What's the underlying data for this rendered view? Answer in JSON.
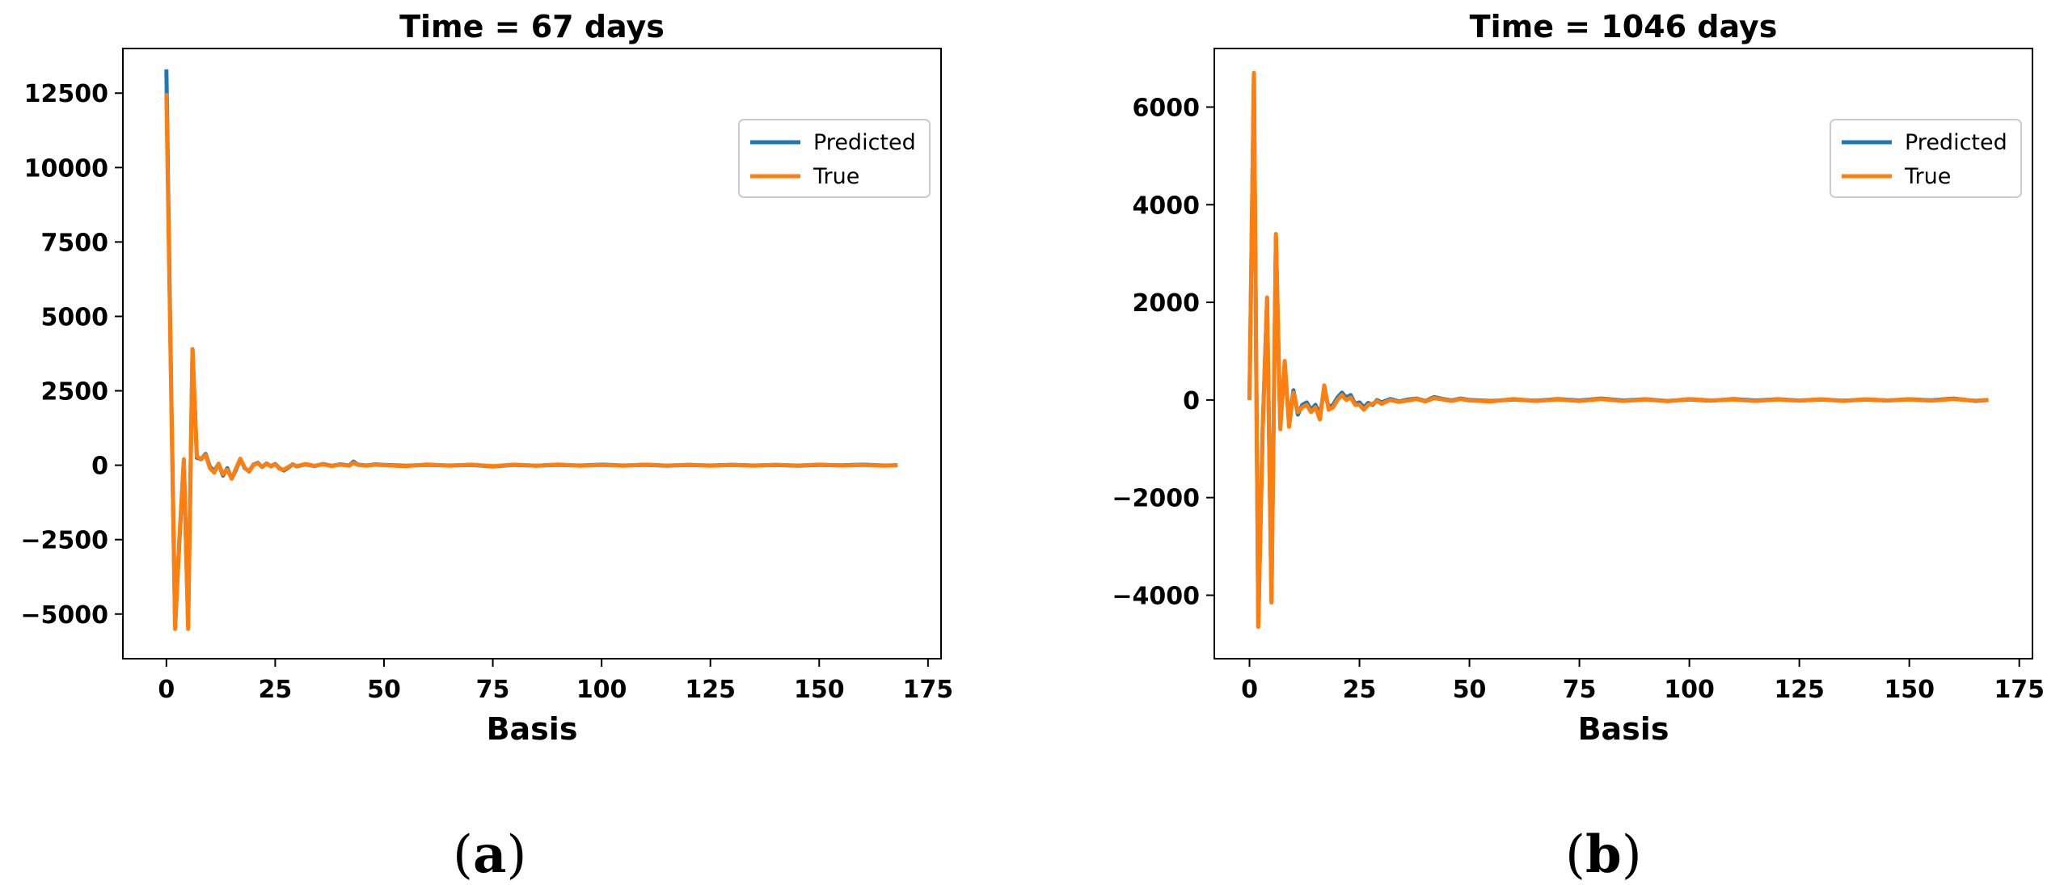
{
  "chart_data": [
    {
      "type": "line",
      "title": "Time = 67 days",
      "xlabel": "Basis",
      "ylabel": "",
      "xlim": [
        -10,
        178
      ],
      "ylim": [
        -6500,
        14000
      ],
      "xticks": [
        0,
        25,
        50,
        75,
        100,
        125,
        150,
        175
      ],
      "xtick_labels": [
        "0",
        "25",
        "50",
        "75",
        "100",
        "125",
        "150",
        "175"
      ],
      "yticks": [
        -5000,
        -2500,
        0,
        2500,
        5000,
        7500,
        10000,
        12500
      ],
      "ytick_labels": [
        "−5000",
        "−2500",
        "0",
        "2500",
        "5000",
        "7500",
        "10000",
        "12500"
      ],
      "legend_position": "upper right",
      "caption": "a",
      "series": [
        {
          "name": "Predicted",
          "color": "#1f77b4",
          "x": [
            0,
            1,
            2,
            3,
            4,
            5,
            6,
            7,
            8,
            9,
            10,
            11,
            12,
            13,
            14,
            15,
            16,
            17,
            18,
            19,
            20,
            21,
            22,
            23,
            24,
            25,
            26,
            27,
            28,
            29,
            30,
            32,
            34,
            36,
            38,
            40,
            42,
            43,
            44,
            46,
            48,
            50,
            55,
            60,
            65,
            70,
            75,
            80,
            85,
            90,
            95,
            100,
            105,
            110,
            115,
            120,
            125,
            130,
            135,
            140,
            145,
            150,
            155,
            160,
            165,
            168
          ],
          "y": [
            13300,
            3500,
            -5400,
            -2500,
            150,
            -5400,
            3900,
            250,
            200,
            380,
            -50,
            -200,
            50,
            -350,
            -100,
            -450,
            -150,
            200,
            -100,
            -200,
            20,
            80,
            -60,
            60,
            -30,
            40,
            -100,
            -180,
            -80,
            30,
            -40,
            30,
            -30,
            40,
            -20,
            30,
            -10,
            120,
            20,
            -10,
            30,
            10,
            -20,
            15,
            -10,
            10,
            -40,
            10,
            -20,
            15,
            -10,
            20,
            -10,
            15,
            -15,
            10,
            -10,
            15,
            -10,
            10,
            -15,
            10,
            -5,
            20,
            -10,
            0
          ]
        },
        {
          "name": "True",
          "color": "#ff7f0e",
          "x": [
            0,
            1,
            2,
            3,
            4,
            5,
            6,
            7,
            8,
            9,
            10,
            11,
            12,
            13,
            14,
            15,
            16,
            17,
            18,
            19,
            20,
            21,
            22,
            23,
            24,
            25,
            26,
            27,
            28,
            29,
            30,
            32,
            34,
            36,
            38,
            40,
            42,
            43,
            44,
            46,
            48,
            50,
            55,
            60,
            65,
            70,
            75,
            80,
            85,
            90,
            95,
            100,
            105,
            110,
            115,
            120,
            125,
            130,
            135,
            140,
            145,
            150,
            155,
            160,
            165,
            168
          ],
          "y": [
            12500,
            3300,
            -5500,
            -2400,
            200,
            -5500,
            3900,
            300,
            200,
            350,
            -100,
            -250,
            50,
            -300,
            -150,
            -450,
            -100,
            220,
            -80,
            -220,
            10,
            60,
            -50,
            50,
            -40,
            30,
            -120,
            -150,
            -60,
            20,
            -30,
            40,
            -20,
            30,
            -30,
            20,
            -20,
            80,
            10,
            -20,
            20,
            0,
            -30,
            25,
            -15,
            20,
            -30,
            20,
            -15,
            25,
            -20,
            10,
            -15,
            20,
            -10,
            15,
            -20,
            10,
            -15,
            15,
            -10,
            20,
            -10,
            10,
            -20,
            0
          ]
        }
      ]
    },
    {
      "type": "line",
      "title": "Time = 1046 days",
      "xlabel": "Basis",
      "ylabel": "",
      "xlim": [
        -8,
        178
      ],
      "ylim": [
        -5300,
        7200
      ],
      "xticks": [
        0,
        25,
        50,
        75,
        100,
        125,
        150,
        175
      ],
      "xtick_labels": [
        "0",
        "25",
        "50",
        "75",
        "100",
        "125",
        "150",
        "175"
      ],
      "yticks": [
        -4000,
        -2000,
        0,
        2000,
        4000,
        6000
      ],
      "ytick_labels": [
        "−4000",
        "−2000",
        "0",
        "2000",
        "4000",
        "6000"
      ],
      "legend_position": "upper right",
      "caption": "b",
      "series": [
        {
          "name": "Predicted",
          "color": "#1f77b4",
          "x": [
            0,
            1,
            2,
            3,
            4,
            5,
            6,
            7,
            8,
            9,
            10,
            11,
            12,
            13,
            14,
            15,
            16,
            17,
            18,
            19,
            20,
            21,
            22,
            23,
            24,
            25,
            26,
            27,
            28,
            29,
            30,
            32,
            34,
            36,
            38,
            40,
            42,
            44,
            46,
            48,
            50,
            55,
            60,
            65,
            70,
            75,
            80,
            85,
            90,
            95,
            100,
            105,
            110,
            115,
            120,
            125,
            130,
            135,
            140,
            145,
            150,
            155,
            160,
            165,
            168
          ],
          "y": [
            0,
            6650,
            -4600,
            -600,
            2050,
            -4100,
            3350,
            -550,
            750,
            -500,
            200,
            -300,
            -100,
            -50,
            -200,
            -100,
            -300,
            200,
            -150,
            -100,
            50,
            150,
            50,
            100,
            -80,
            -50,
            -150,
            -60,
            -100,
            0,
            -50,
            20,
            -30,
            10,
            30,
            -20,
            60,
            20,
            -10,
            30,
            0,
            -20,
            10,
            -15,
            20,
            -10,
            30,
            -10,
            15,
            -20,
            10,
            -15,
            20,
            -10,
            15,
            -10,
            10,
            -15,
            10,
            -10,
            15,
            -5,
            30,
            -20,
            0
          ]
        },
        {
          "name": "True",
          "color": "#ff7f0e",
          "x": [
            0,
            1,
            2,
            3,
            4,
            5,
            6,
            7,
            8,
            9,
            10,
            11,
            12,
            13,
            14,
            15,
            16,
            17,
            18,
            19,
            20,
            21,
            22,
            23,
            24,
            25,
            26,
            27,
            28,
            29,
            30,
            32,
            34,
            36,
            38,
            40,
            42,
            44,
            46,
            48,
            50,
            55,
            60,
            65,
            70,
            75,
            80,
            85,
            90,
            95,
            100,
            105,
            110,
            115,
            120,
            125,
            130,
            135,
            140,
            145,
            150,
            155,
            160,
            165,
            168
          ],
          "y": [
            0,
            6700,
            -4650,
            -650,
            2100,
            -4150,
            3400,
            -600,
            800,
            -550,
            150,
            -250,
            -150,
            -100,
            -250,
            -150,
            -400,
            300,
            -200,
            -150,
            0,
            100,
            0,
            50,
            -100,
            -100,
            -200,
            -100,
            -80,
            -20,
            -80,
            0,
            -40,
            -10,
            20,
            -30,
            40,
            10,
            -20,
            20,
            -10,
            -30,
            20,
            -20,
            10,
            -20,
            20,
            -20,
            10,
            -25,
            20,
            -10,
            10,
            -20,
            10,
            -15,
            15,
            -20,
            15,
            -10,
            10,
            -15,
            20,
            -15,
            0
          ]
        }
      ]
    }
  ]
}
